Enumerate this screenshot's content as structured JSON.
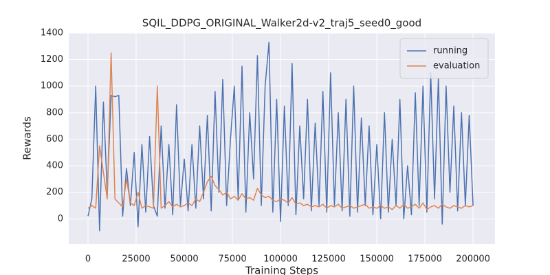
{
  "chart_data": {
    "type": "line",
    "title": "SQIL_DDPG_ORIGINAL_Walker2d-v2_traj5_seed0_good",
    "xlabel": "Training Steps",
    "ylabel": "Rewards",
    "x": [
      0,
      2000,
      4000,
      6000,
      8000,
      10000,
      12000,
      14000,
      16000,
      18000,
      20000,
      22000,
      24000,
      26000,
      28000,
      30000,
      32000,
      34000,
      36000,
      38000,
      40000,
      42000,
      44000,
      46000,
      48000,
      50000,
      52000,
      54000,
      56000,
      58000,
      60000,
      62000,
      64000,
      66000,
      68000,
      70000,
      72000,
      74000,
      76000,
      78000,
      80000,
      82000,
      84000,
      86000,
      88000,
      90000,
      92000,
      94000,
      96000,
      98000,
      100000,
      102000,
      104000,
      106000,
      108000,
      110000,
      112000,
      114000,
      116000,
      118000,
      120000,
      122000,
      124000,
      126000,
      128000,
      130000,
      132000,
      134000,
      136000,
      138000,
      140000,
      142000,
      144000,
      146000,
      148000,
      150000,
      152000,
      154000,
      156000,
      158000,
      160000,
      162000,
      164000,
      166000,
      168000,
      170000,
      172000,
      174000,
      176000,
      178000,
      180000,
      182000,
      184000,
      186000,
      188000,
      190000,
      192000,
      194000,
      196000,
      198000,
      200000
    ],
    "series": [
      {
        "name": "running",
        "color": "#4c72b0",
        "values": [
          20,
          150,
          1000,
          -90,
          880,
          200,
          930,
          920,
          930,
          20,
          380,
          100,
          500,
          -60,
          560,
          50,
          620,
          100,
          20,
          700,
          80,
          560,
          30,
          860,
          100,
          450,
          60,
          560,
          80,
          700,
          150,
          780,
          60,
          960,
          200,
          1050,
          100,
          600,
          1000,
          150,
          1150,
          50,
          800,
          300,
          1230,
          100,
          1000,
          1330,
          50,
          900,
          -20,
          850,
          100,
          1170,
          30,
          700,
          150,
          900,
          60,
          720,
          100,
          960,
          50,
          1100,
          100,
          800,
          60,
          900,
          20,
          1000,
          50,
          760,
          100,
          700,
          30,
          560,
          0,
          800,
          50,
          600,
          100,
          900,
          0,
          400,
          30,
          950,
          100,
          1000,
          50,
          1100,
          150,
          1060,
          -40,
          1000,
          200,
          850,
          60,
          800,
          100,
          780,
          100
        ]
      },
      {
        "name": "evaluation",
        "color": "#dd8452",
        "values": [
          80,
          100,
          80,
          550,
          350,
          150,
          1250,
          150,
          120,
          90,
          300,
          120,
          100,
          200,
          80,
          100,
          90,
          80,
          1000,
          80,
          100,
          130,
          90,
          110,
          90,
          100,
          120,
          100,
          150,
          130,
          200,
          280,
          320,
          250,
          220,
          180,
          200,
          150,
          170,
          140,
          190,
          150,
          160,
          140,
          230,
          180,
          160,
          170,
          140,
          130,
          150,
          140,
          120,
          160,
          110,
          120,
          100,
          110,
          90,
          100,
          90,
          110,
          80,
          100,
          90,
          110,
          80,
          90,
          100,
          80,
          90,
          100,
          110,
          80,
          90,
          80,
          100,
          80,
          90,
          70,
          100,
          80,
          110,
          80,
          90,
          110,
          80,
          120,
          70,
          90,
          100,
          80,
          110,
          90,
          80,
          100,
          90,
          80,
          100,
          90,
          100
        ]
      }
    ],
    "xlim": [
      -10000,
      211400
    ],
    "ylim": [
      -190,
      1400
    ],
    "xticks": [
      0,
      25000,
      50000,
      75000,
      100000,
      125000,
      150000,
      175000,
      200000
    ],
    "yticks": [
      0,
      200,
      400,
      600,
      800,
      1000,
      1200,
      1400
    ],
    "grid": true,
    "legend": "upper right"
  }
}
